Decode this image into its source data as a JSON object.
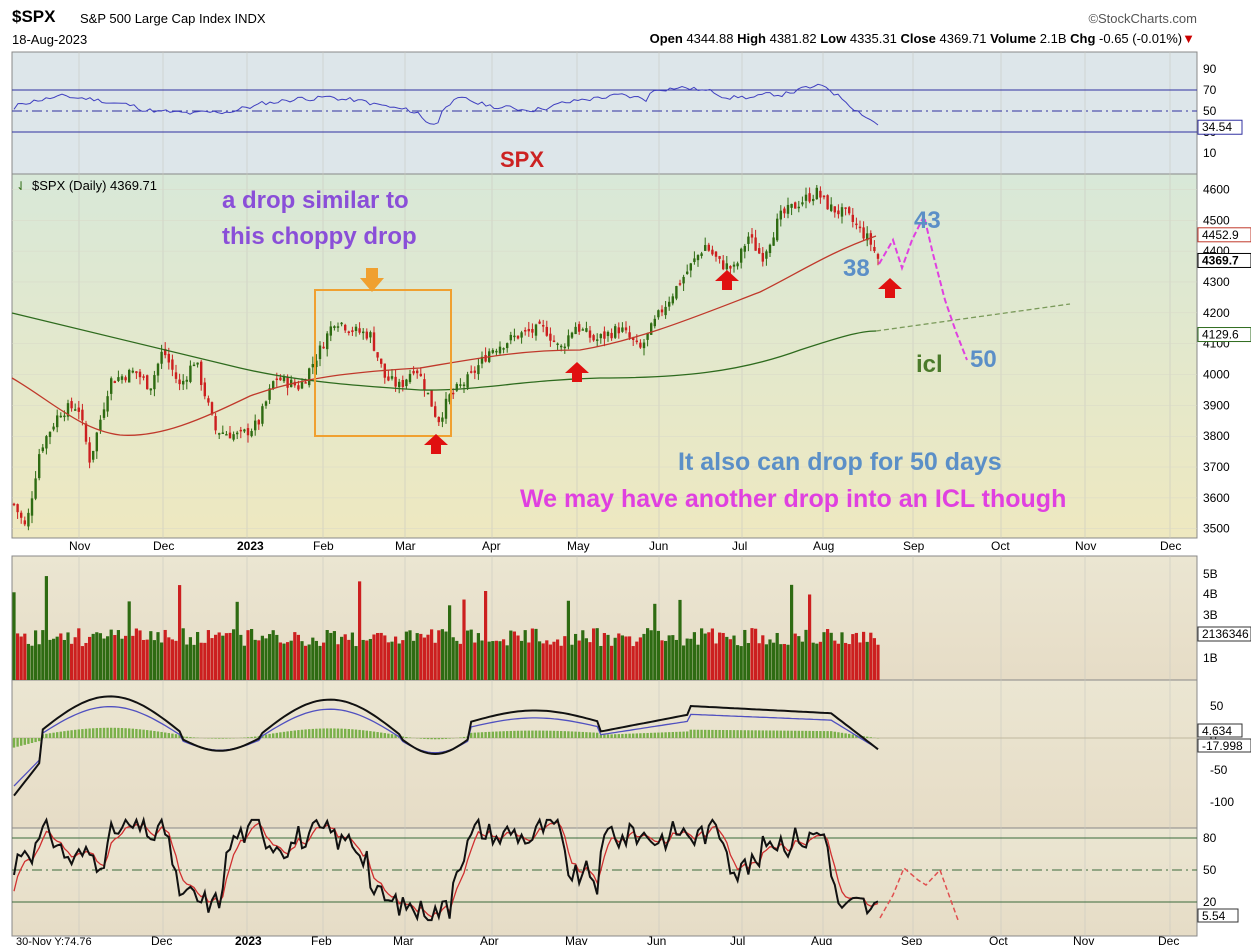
{
  "header": {
    "symbol": "$SPX",
    "name": "S&P 500 Large Cap Index",
    "exchange": "INDX",
    "date": "18-Aug-2023",
    "brand": "©StockCharts.com",
    "open_label": "Open",
    "open": "4344.88",
    "high_label": "High",
    "high": "4381.82",
    "low_label": "Low",
    "low": "4335.31",
    "close_label": "Close",
    "close": "4369.71",
    "volume_label": "Volume",
    "volume": "2.1B",
    "chg_label": "Chg",
    "chg": "-0.65 (-0.01%)",
    "chg_color": "#cc0000"
  },
  "annotations": {
    "spx": "SPX",
    "drop_similar": [
      "a drop similar to",
      "this choppy drop"
    ],
    "label_38": "38",
    "label_43": "43",
    "label_50": "50",
    "label_icl": "icl",
    "also_drop": "It also can drop for 50 days",
    "another_drop": "We may have another drop into an ICL though"
  },
  "colors": {
    "up": "#2e6b12",
    "down": "#cc1f1f",
    "ma50": "#c0392b",
    "ma200": "#2e6b1e",
    "purple_text": "#8a4fd8",
    "blue_text": "#5b8fc7",
    "magenta": "#e040e0",
    "green_text": "#4a7a2a",
    "spx_red": "#cc2222",
    "orange": "#f0a030",
    "arrow_red": "#e01010"
  },
  "chart_data": {
    "type": "candlestick",
    "title": "$SPX (Daily) 4369.71",
    "x_ticks": [
      "Nov",
      "Dec",
      "2023",
      "Feb",
      "Mar",
      "Apr",
      "May",
      "Jun",
      "Jul",
      "Aug",
      "Sep",
      "Oct",
      "Nov",
      "Dec"
    ],
    "bottom_x_ticks": [
      "Dec",
      "2023",
      "Feb",
      "Mar",
      "Apr",
      "May",
      "Jun",
      "Jul",
      "Aug",
      "Sep",
      "Oct",
      "Nov",
      "Dec"
    ],
    "cursor_readout": "30-Nov Y:74.76",
    "price_axis": [
      4600,
      4500,
      4400,
      4300,
      4200,
      4100,
      4000,
      3900,
      3800,
      3700,
      3600,
      3500
    ],
    "price_ylim": [
      3470,
      4650
    ],
    "price_last_labels": [
      "4452.9",
      "4369.7",
      "4129.6"
    ],
    "price_path_monthly": [
      {
        "month": "Oct 2022 end",
        "close": 3580
      },
      {
        "month": "Nov",
        "close": 3950
      },
      {
        "month": "Dec",
        "close": 3840
      },
      {
        "month": "Jan",
        "close": 4070
      },
      {
        "month": "Feb",
        "close": 3970
      },
      {
        "month": "Mar",
        "close": 4100
      },
      {
        "month": "Apr",
        "close": 4170
      },
      {
        "month": "May",
        "close": 4180
      },
      {
        "month": "Jun",
        "close": 4450
      },
      {
        "month": "Jul",
        "close": 4590
      },
      {
        "month": "Aug 18",
        "close": 4369.71
      }
    ],
    "projection": {
      "points": [
        4369.71,
        4450,
        4350,
        4460,
        4200,
        4020
      ],
      "labels": [
        "38",
        "43",
        "50"
      ]
    },
    "rsi": {
      "axis": [
        90,
        70,
        50,
        30,
        10
      ],
      "last": "34.54"
    },
    "volume": {
      "axis": [
        "5B",
        "4B",
        "3B",
        "2B",
        "1B"
      ],
      "last": "2136346"
    },
    "macd": {
      "axis": [
        50,
        0,
        -50,
        -100
      ],
      "last": [
        "4.634",
        "-17.998"
      ]
    },
    "stoch": {
      "axis": [
        80,
        50,
        20
      ],
      "last": "5.54"
    }
  }
}
